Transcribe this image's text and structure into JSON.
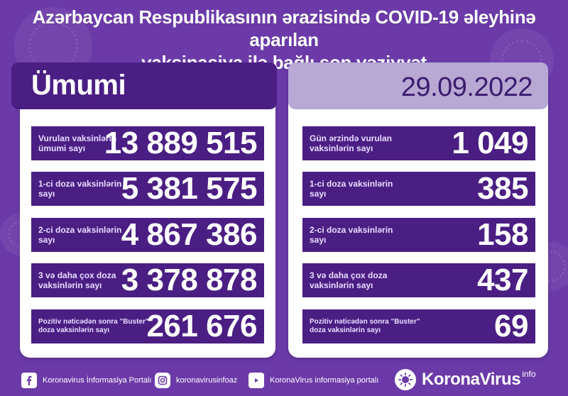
{
  "title": {
    "line1": "Azərbaycan Respublikasının ərazisində COVID-19 əleyhinə aparılan",
    "line2": "vaksinasiya ilə bağlı son vəziyyət"
  },
  "left": {
    "header": "Ümumi",
    "rows": [
      {
        "label": "Vurulan vaksinlərin ümumi sayı",
        "value": "13 889 515"
      },
      {
        "label": "1-ci doza vaksinlərin sayı",
        "value": "5 381 575"
      },
      {
        "label": "2-ci doza vaksinlərin sayı",
        "value": "4 867 386"
      },
      {
        "label": "3 və daha çox doza vaksinlərin sayı",
        "value": "3 378 878"
      },
      {
        "label": "Pozitiv nəticədən sonra \"Buster\" doza vaksinlərin sayı",
        "value": "261 676"
      }
    ]
  },
  "right": {
    "date": "29.09.2022",
    "rows": [
      {
        "label": "Gün ərzində vurulan vaksinlərin sayı",
        "value": "1 049"
      },
      {
        "label": "1-ci doza vaksinlərin sayı",
        "value": "385"
      },
      {
        "label": "2-ci doza vaksinlərin sayı",
        "value": "158"
      },
      {
        "label": "3 və daha çox doza vaksinlərin sayı",
        "value": "437"
      },
      {
        "label": "Pozitiv nəticədən sonra \"Buster\" doza vaksinlərin sayı",
        "value": "69"
      }
    ]
  },
  "footer": {
    "facebook": "Koronavirus İnformasiya Portalı",
    "instagram": "koronavirusinfoaz",
    "youtube": "KoronaVirus informasiya portalı",
    "brand": "KoronaVirus",
    "brand_suffix": "info",
    "icons": [
      "facebook-icon",
      "instagram-icon",
      "youtube-icon",
      "koronavirus-logo-icon"
    ]
  }
}
